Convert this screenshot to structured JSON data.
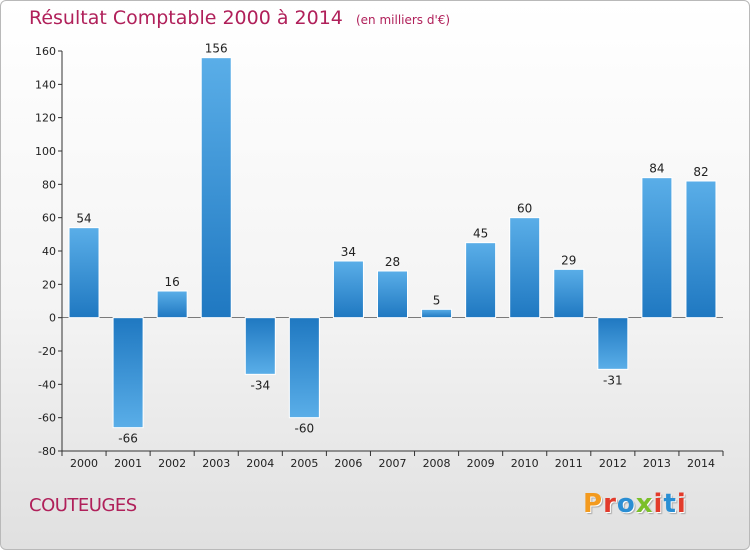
{
  "header": {
    "title": "Résultat Comptable 2000 à 2014",
    "subtitle": "(en milliers d'€)"
  },
  "footer": {
    "commune": "COUTEUGES",
    "brand": "Proxiti",
    "brand_colors": [
      "#f39a1e",
      "#e23b2b",
      "#2a8ed3",
      "#7bbf2a",
      "#e23b2b",
      "#2a8ed3",
      "#e23b2b"
    ]
  },
  "chart_data": {
    "type": "bar",
    "title": "Résultat Comptable 2000 à 2014",
    "subtitle": "(en milliers d'€)",
    "xlabel": "",
    "ylabel": "",
    "categories": [
      "2000",
      "2001",
      "2002",
      "2003",
      "2004",
      "2005",
      "2006",
      "2007",
      "2008",
      "2009",
      "2010",
      "2011",
      "2012",
      "2013",
      "2014"
    ],
    "values": [
      54,
      -66,
      16,
      156,
      -34,
      -60,
      34,
      28,
      5,
      45,
      60,
      29,
      -31,
      84,
      82
    ],
    "ylim": [
      -80,
      160
    ],
    "yticks": [
      -80,
      -60,
      -40,
      -20,
      0,
      20,
      40,
      60,
      80,
      100,
      120,
      140,
      160
    ],
    "grid": false,
    "legend": "none",
    "colors": {
      "bar_light": "#5aaee8",
      "bar_dark": "#1f78c1",
      "axis": "#333333"
    }
  }
}
